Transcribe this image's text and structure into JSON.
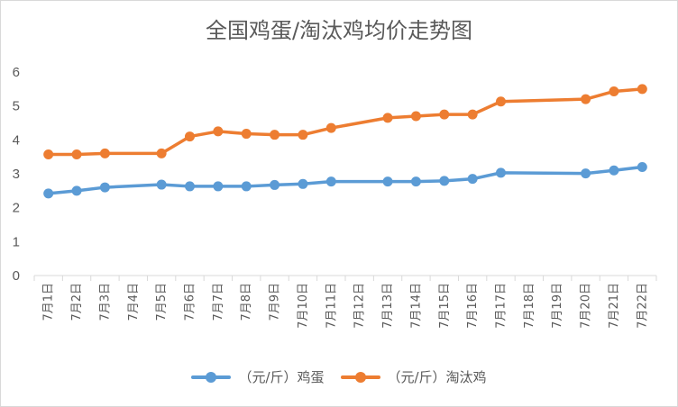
{
  "chart_data": {
    "type": "line",
    "title": "全国鸡蛋/淘汰鸡均价走势图",
    "categories": [
      "7月1日",
      "7月2日",
      "7月3日",
      "7月4日",
      "7月5日",
      "7月6日",
      "7月7日",
      "7月8日",
      "7月9日",
      "7月10日",
      "7月11日",
      "7月12日",
      "7月13日",
      "7月14日",
      "7月15日",
      "7月16日",
      "7月17日",
      "7月18日",
      "7月19日",
      "7月20日",
      "7月21日",
      "7月22日"
    ],
    "ylim": [
      0,
      6
    ],
    "yticks": [
      "0",
      "1",
      "2",
      "3",
      "4",
      "5",
      "6"
    ],
    "grid": false,
    "legend_position": "bottom",
    "series": [
      {
        "name": "（元/斤）鸡蛋",
        "color": "#5B9BD5",
        "values": [
          2.42,
          2.5,
          2.6,
          null,
          2.68,
          2.63,
          2.63,
          2.63,
          2.67,
          2.7,
          2.77,
          null,
          2.77,
          2.77,
          2.79,
          2.85,
          3.03,
          null,
          null,
          3.01,
          3.1,
          3.2
        ]
      },
      {
        "name": "（元/斤）淘汰鸡",
        "color": "#ED7D31",
        "values": [
          3.57,
          3.57,
          3.6,
          null,
          3.6,
          4.1,
          4.25,
          4.18,
          4.15,
          4.15,
          4.35,
          null,
          4.65,
          4.7,
          4.75,
          4.75,
          5.13,
          null,
          null,
          5.2,
          5.43,
          5.5
        ]
      }
    ]
  }
}
